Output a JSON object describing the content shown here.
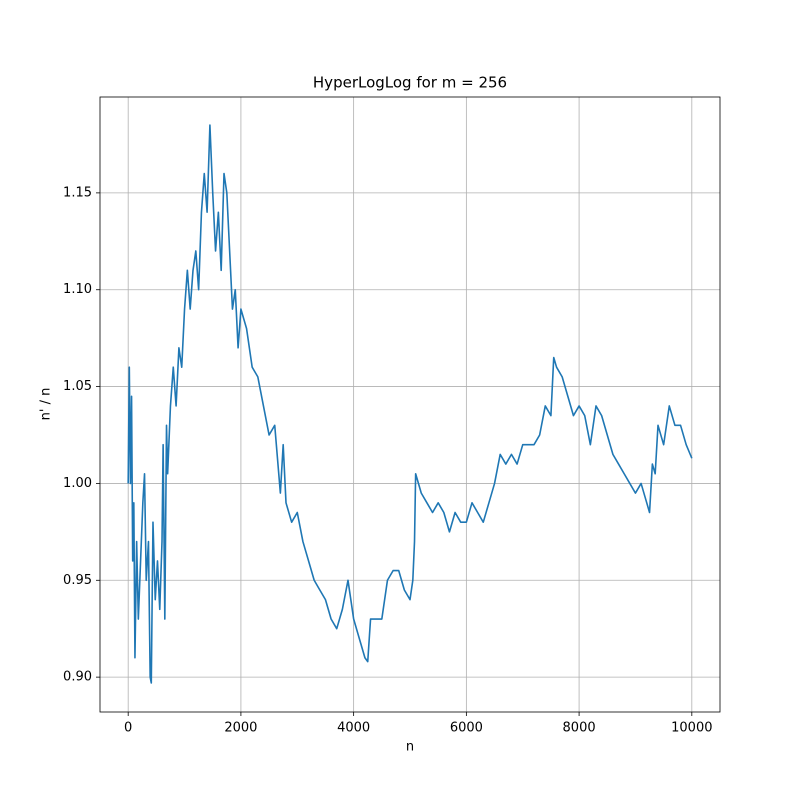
{
  "chart_data": {
    "type": "line",
    "title": "HyperLogLog for m = 256",
    "x_label": "n",
    "y_label": "n' / n",
    "color": "#1f77b4",
    "grid": true,
    "xlim": [
      -500,
      10500
    ],
    "xticks": [
      0,
      2000,
      4000,
      6000,
      8000,
      10000
    ],
    "ylim": [
      0.882,
      1.1995
    ],
    "yticks": [
      {
        "value": 0.9,
        "label": "0.90"
      },
      0.95,
      {
        "value": 1.0,
        "label": "1.00"
      },
      1.05,
      {
        "value": 1.1,
        "label": "1.10"
      },
      1.15
    ],
    "x": [
      0,
      20,
      40,
      60,
      80,
      100,
      120,
      150,
      180,
      220,
      260,
      290,
      320,
      360,
      390,
      410,
      440,
      480,
      520,
      560,
      600,
      620,
      650,
      680,
      700,
      750,
      800,
      850,
      900,
      950,
      1000,
      1050,
      1100,
      1150,
      1200,
      1250,
      1300,
      1350,
      1400,
      1450,
      1500,
      1550,
      1600,
      1650,
      1700,
      1750,
      1800,
      1850,
      1900,
      1950,
      2000,
      2100,
      2200,
      2300,
      2400,
      2500,
      2600,
      2700,
      2750,
      2800,
      2900,
      3000,
      3100,
      3200,
      3300,
      3400,
      3500,
      3600,
      3700,
      3800,
      3900,
      4000,
      4100,
      4200,
      4250,
      4300,
      4400,
      4500,
      4600,
      4700,
      4800,
      4900,
      5000,
      5050,
      5080,
      5100,
      5200,
      5300,
      5400,
      5500,
      5600,
      5700,
      5800,
      5900,
      6000,
      6100,
      6200,
      6300,
      6400,
      6500,
      6600,
      6700,
      6800,
      6900,
      7000,
      7100,
      7200,
      7300,
      7400,
      7500,
      7550,
      7600,
      7700,
      7800,
      7900,
      8000,
      8100,
      8200,
      8300,
      8400,
      8500,
      8600,
      8700,
      8800,
      8900,
      9000,
      9100,
      9200,
      9250,
      9300,
      9350,
      9400,
      9500,
      9600,
      9700,
      9800,
      9900,
      10000
    ],
    "values": [
      1.0,
      1.06,
      1.0,
      1.045,
      0.96,
      0.99,
      0.91,
      0.97,
      0.93,
      0.96,
      0.99,
      1.005,
      0.95,
      0.97,
      0.9,
      0.897,
      0.98,
      0.94,
      0.96,
      0.935,
      0.97,
      1.02,
      0.93,
      1.03,
      1.005,
      1.04,
      1.06,
      1.04,
      1.07,
      1.06,
      1.09,
      1.11,
      1.09,
      1.11,
      1.12,
      1.1,
      1.14,
      1.16,
      1.14,
      1.185,
      1.15,
      1.12,
      1.14,
      1.11,
      1.16,
      1.15,
      1.12,
      1.09,
      1.1,
      1.07,
      1.09,
      1.08,
      1.06,
      1.055,
      1.04,
      1.025,
      1.03,
      0.995,
      1.02,
      0.99,
      0.98,
      0.985,
      0.97,
      0.96,
      0.95,
      0.945,
      0.94,
      0.93,
      0.925,
      0.935,
      0.95,
      0.93,
      0.92,
      0.91,
      0.908,
      0.93,
      0.93,
      0.93,
      0.95,
      0.955,
      0.955,
      0.945,
      0.94,
      0.95,
      0.97,
      1.005,
      0.995,
      0.99,
      0.985,
      0.99,
      0.985,
      0.975,
      0.985,
      0.98,
      0.98,
      0.99,
      0.985,
      0.98,
      0.99,
      1.0,
      1.015,
      1.01,
      1.015,
      1.01,
      1.02,
      1.02,
      1.02,
      1.025,
      1.04,
      1.035,
      1.065,
      1.06,
      1.055,
      1.045,
      1.035,
      1.04,
      1.035,
      1.02,
      1.04,
      1.035,
      1.025,
      1.015,
      1.01,
      1.005,
      1.0,
      0.995,
      1.0,
      0.99,
      0.985,
      1.01,
      1.005,
      1.03,
      1.02,
      1.04,
      1.03,
      1.03,
      1.02,
      1.013
    ]
  }
}
